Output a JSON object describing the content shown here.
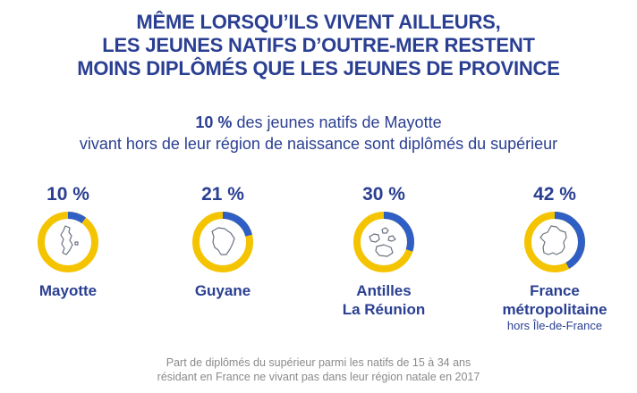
{
  "header": {
    "title_lines": [
      "MÊME LORSQU’ILS VIVENT AILLEURS,",
      "LES JEUNES NATIFS D’OUTRE-MER RESTENT",
      "MOINS DIPLÔMÉS QUE LES JEUNES DE PROVINCE"
    ],
    "subtitle_bold": "10 %",
    "subtitle_line1_rest": " des jeunes natifs de Mayotte",
    "subtitle_line2": "vivant hors de leur région de naissance sont diplômés du supérieur"
  },
  "colors": {
    "accent": "#2f5fc4",
    "ring_base": "#f5c400",
    "text": "#2a3f92",
    "note": "#8a8a8a"
  },
  "chart_data": {
    "type": "pie",
    "unit": "%",
    "series": [
      {
        "label": "Mayotte",
        "sublabel": "",
        "value": 10,
        "value_label": "10 %",
        "icon": "mayotte-map-icon"
      },
      {
        "label": "Guyane",
        "sublabel": "",
        "value": 21,
        "value_label": "21 %",
        "icon": "guyane-map-icon"
      },
      {
        "label": "Antilles\nLa Réunion",
        "sublabel": "",
        "value": 30,
        "value_label": "30 %",
        "icon": "antilles-reunion-map-icon"
      },
      {
        "label": "France\nmétropolitaine",
        "sublabel": "hors Île-de-France",
        "value": 42,
        "value_label": "42 %",
        "icon": "france-map-icon"
      }
    ],
    "note_lines": [
      "Part de diplômés du supérieur parmi les natifs de 15 à 34 ans",
      "résidant en France ne vivant pas dans leur région natale en 2017"
    ]
  }
}
